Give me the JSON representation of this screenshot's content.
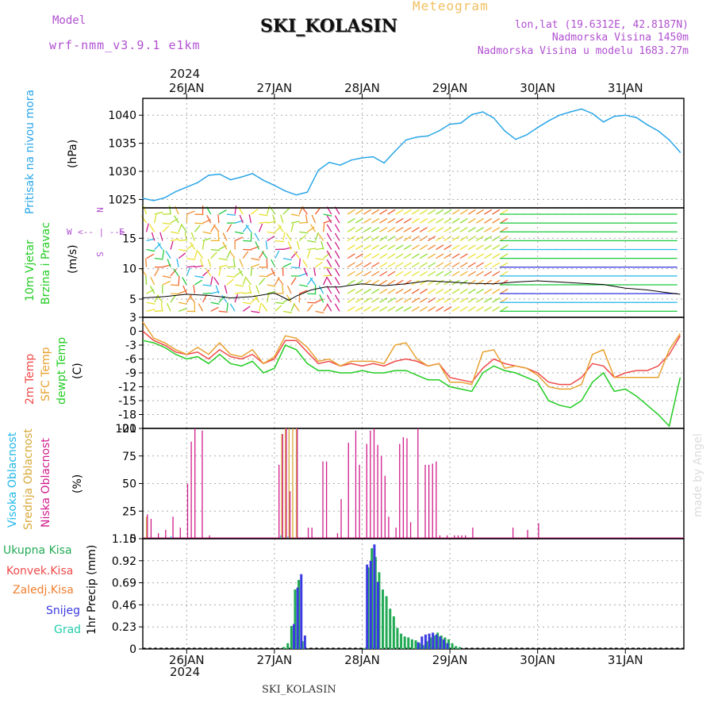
{
  "header": {
    "title": "SKI_KOLASIN",
    "subtitle": "Meteogram",
    "model_label": "Model",
    "model_name": "wrf-nmm_v3.9.1  e1km",
    "lonlat": "lon,lat (19.6312E, 42.8187N)",
    "elevation": "Nadmorska Visina 1450m",
    "model_elevation": "Nadmorska Visina u modelu 1683.27m",
    "footer_station": "SKI_KOLASIN",
    "watermark": "made by Angel",
    "year": "2024"
  },
  "colors": {
    "pressure": "#2aa6e8",
    "temp2m": "#f04a4a",
    "sfc": "#e8a030",
    "dewpt": "#22cc22",
    "high": "#22b8e8",
    "mid": "#d8a838",
    "low": "#d01c8b",
    "total_precip": "#22aa55",
    "conv": "#f04a4a",
    "frz": "#f08030",
    "snow": "#3a3ae0",
    "grad": "#22ccaa",
    "purple_text": "#b050d0",
    "title_orange": "#f0c060"
  },
  "panels": {
    "pressure": {
      "label1": "Pritisak na nivou mora",
      "unit": "(hPa)"
    },
    "wind": {
      "label1": "10m Vjetar",
      "label2": "Brzina i Pravac",
      "unit": "(m/s)",
      "compass_n": "N",
      "compass_e": "E",
      "compass_s": "S",
      "compass_w": "W"
    },
    "temp": {
      "label1": "2m Temp",
      "label2": "SFC Temp",
      "label3": "dewpt Temp",
      "unit": "(C)"
    },
    "cloud": {
      "label1": "Visoka Oblacnost",
      "label2": "Srednja Oblacnost",
      "label3": "Niska Oblacnost",
      "unit": "(%)"
    },
    "precip": {
      "unit": "1hr Precip (mm)",
      "legend": [
        "Ukupna Kisa",
        "Konvek.Kisa",
        "Zaledj.Kisa",
        "Snijeg",
        "Grad"
      ]
    }
  },
  "chart_data": [
    {
      "type": "line",
      "title": "Pritisak na nivou mora",
      "ylabel": "(hPa)",
      "ylim": [
        1023.5,
        1043
      ],
      "yticks": [
        1025,
        1030,
        1035,
        1040
      ],
      "xlim": [
        0,
        148
      ],
      "x_categories": [
        "26JAN",
        "27JAN",
        "28JAN",
        "29JAN",
        "30JAN",
        "31JAN"
      ],
      "x_category_pos": [
        12,
        36,
        60,
        84,
        108,
        132
      ],
      "x": [
        0,
        3,
        6,
        9,
        12,
        15,
        18,
        21,
        24,
        27,
        30,
        33,
        36,
        39,
        42,
        45,
        48,
        51,
        54,
        57,
        60,
        63,
        66,
        69,
        72,
        75,
        78,
        81,
        84,
        87,
        90,
        93,
        96,
        99,
        102,
        105,
        108,
        111,
        114,
        117,
        120,
        123,
        126,
        129,
        132,
        135,
        138,
        141,
        144,
        147
      ],
      "values": [
        1025.2,
        1024.8,
        1025.3,
        1026.4,
        1027.2,
        1028.0,
        1029.3,
        1029.5,
        1028.5,
        1029.0,
        1029.6,
        1028.4,
        1027.5,
        1026.5,
        1025.8,
        1026.3,
        1030.2,
        1031.6,
        1031.1,
        1032.0,
        1032.4,
        1032.6,
        1031.5,
        1033.6,
        1035.6,
        1036.1,
        1036.3,
        1037.2,
        1038.4,
        1038.6,
        1040.1,
        1040.6,
        1039.5,
        1037.2,
        1035.7,
        1036.5,
        1037.8,
        1039.0,
        1040.0,
        1040.6,
        1041.1,
        1040.3,
        1038.8,
        1039.8,
        1040.0,
        1039.6,
        1038.3,
        1037.2,
        1035.6,
        1033.4
      ],
      "grid": true
    },
    {
      "type": "line",
      "title": "10m Vjetar Brzina i Pravac",
      "ylabel": "(m/s)",
      "ylim": [
        2,
        20
      ],
      "yticks": [
        5,
        10,
        15
      ],
      "xlim": [
        0,
        148
      ],
      "x": [
        0,
        6,
        12,
        18,
        24,
        30,
        36,
        40,
        42,
        46,
        50,
        54,
        56,
        60,
        66,
        72,
        78,
        84,
        90,
        96,
        102,
        108,
        114,
        120,
        126,
        132,
        138,
        144,
        147
      ],
      "values": [
        5.2,
        5.4,
        5.8,
        5.6,
        5.2,
        5.4,
        6.0,
        4.8,
        5.5,
        6.5,
        7.0,
        7.0,
        7.2,
        7.5,
        7.2,
        7.5,
        8.0,
        7.8,
        7.6,
        7.5,
        7.8,
        8.0,
        7.8,
        7.6,
        7.4,
        6.8,
        6.5,
        6.0,
        5.8
      ],
      "grid": true
    },
    {
      "type": "line",
      "title": "Temp",
      "ylabel": "(C)",
      "ylim": [
        -21,
        3
      ],
      "yticks": [
        3,
        0,
        -3,
        -6,
        -9,
        -12,
        -15,
        -18,
        -21
      ],
      "xlim": [
        0,
        148
      ],
      "series": [
        {
          "name": "2m Temp",
          "x": [
            0,
            3,
            6,
            9,
            12,
            15,
            18,
            21,
            24,
            27,
            30,
            33,
            36,
            39,
            42,
            45,
            48,
            51,
            54,
            57,
            60,
            63,
            66,
            69,
            72,
            75,
            78,
            81,
            84,
            87,
            90,
            93,
            96,
            99,
            102,
            105,
            108,
            111,
            114,
            117,
            120,
            123,
            126,
            129,
            132,
            135,
            138,
            141,
            144,
            147
          ],
          "values": [
            0,
            -2,
            -3,
            -4.5,
            -5,
            -4.5,
            -6,
            -4,
            -5.5,
            -6,
            -5,
            -7,
            -6,
            -2,
            -2,
            -4.5,
            -7,
            -6.5,
            -7.5,
            -7,
            -7.5,
            -7,
            -7.5,
            -6.5,
            -6,
            -6.5,
            -7.5,
            -7,
            -10,
            -10.5,
            -11,
            -8,
            -6,
            -7,
            -7.5,
            -8,
            -9,
            -11,
            -11.5,
            -11.5,
            -10,
            -7,
            -7.5,
            -10,
            -9,
            -8.5,
            -8.5,
            -7.5,
            -5,
            -1
          ]
        },
        {
          "name": "SFC Temp",
          "x": [
            0,
            3,
            6,
            9,
            12,
            15,
            18,
            21,
            24,
            27,
            30,
            33,
            36,
            39,
            42,
            45,
            48,
            51,
            54,
            57,
            60,
            63,
            66,
            69,
            72,
            75,
            78,
            81,
            84,
            87,
            90,
            93,
            96,
            99,
            102,
            105,
            108,
            111,
            114,
            117,
            120,
            123,
            126,
            129,
            132,
            135,
            138,
            141,
            144,
            147
          ],
          "values": [
            2,
            -1.5,
            -2.5,
            -4,
            -5,
            -3.5,
            -5,
            -2.5,
            -5,
            -5.5,
            -4,
            -7,
            -5.5,
            -1,
            -1.5,
            -3.5,
            -6.5,
            -6,
            -7.5,
            -6.5,
            -6.5,
            -6.5,
            -7,
            -3,
            -2.5,
            -6,
            -7.5,
            -7,
            -11,
            -11,
            -11.5,
            -4.5,
            -4,
            -8,
            -7.5,
            -8,
            -9.5,
            -12,
            -12.5,
            -12.5,
            -11.5,
            -5,
            -4,
            -10,
            -10,
            -10,
            -10,
            -10,
            -4,
            -0.5
          ]
        },
        {
          "name": "dewpt Temp",
          "x": [
            0,
            3,
            6,
            9,
            12,
            15,
            18,
            21,
            24,
            27,
            30,
            33,
            36,
            39,
            42,
            45,
            48,
            51,
            54,
            57,
            60,
            63,
            66,
            69,
            72,
            75,
            78,
            81,
            84,
            87,
            90,
            93,
            96,
            99,
            102,
            105,
            108,
            111,
            114,
            117,
            120,
            123,
            126,
            129,
            132,
            135,
            138,
            141,
            144,
            147
          ],
          "values": [
            -2,
            -2.5,
            -3.5,
            -5,
            -6,
            -5.5,
            -7,
            -5,
            -7,
            -7.5,
            -6.5,
            -9,
            -8,
            -3,
            -4,
            -7,
            -8.5,
            -8.5,
            -9,
            -9,
            -8.5,
            -9,
            -9,
            -8.5,
            -8.5,
            -9.5,
            -10.5,
            -10.5,
            -12,
            -12.5,
            -13,
            -9,
            -7.5,
            -8.5,
            -9,
            -10,
            -11,
            -15,
            -16,
            -16.5,
            -15,
            -11,
            -9,
            -13,
            -12.5,
            -14,
            -16,
            -18,
            -20.5,
            -10
          ]
        }
      ],
      "grid": true
    },
    {
      "type": "bar",
      "title": "Oblacnost",
      "ylabel": "(%)",
      "ylim": [
        0,
        100
      ],
      "yticks": [
        0,
        25,
        50,
        75,
        100
      ],
      "xlim": [
        0,
        148
      ],
      "series": [
        {
          "name": "Visoka Oblacnost",
          "x": [
            8,
            38,
            40
          ],
          "values": [
            2,
            3,
            2
          ]
        },
        {
          "name": "Srednja Oblacnost",
          "x": [
            1,
            38,
            39,
            40,
            41,
            42
          ],
          "values": [
            20,
            95,
            100,
            100,
            100,
            100
          ]
        },
        {
          "name": "Niska Oblacnost",
          "x": [
            1,
            2,
            4,
            6,
            8,
            10,
            12,
            13,
            14,
            16,
            18,
            37,
            38,
            39,
            40,
            42,
            45,
            46,
            49,
            50,
            53,
            54,
            56,
            58,
            59,
            61,
            62,
            63,
            64,
            65,
            66,
            67,
            69,
            70,
            71,
            72,
            73,
            75,
            77,
            78,
            79,
            80,
            81,
            83,
            85,
            86,
            87,
            88,
            90,
            101,
            105,
            108
          ],
          "values": [
            22,
            18,
            5,
            8,
            20,
            10,
            50,
            88,
            100,
            98,
            3,
            67,
            95,
            100,
            43,
            100,
            10,
            10,
            70,
            70,
            5,
            36,
            87,
            98,
            67,
            86,
            98,
            100,
            85,
            75,
            57,
            20,
            10,
            86,
            92,
            91,
            15,
            100,
            67,
            67,
            68,
            70,
            3,
            3,
            3,
            3,
            3,
            3,
            10,
            10,
            8,
            14
          ]
        }
      ],
      "grid": true
    },
    {
      "type": "bar",
      "title": "1hr Precip",
      "ylabel": "1hr Precip (mm)",
      "ylim": [
        0,
        1.15
      ],
      "yticks": [
        0,
        0.23,
        0.46,
        0.69,
        0.92,
        1.15
      ],
      "xlim": [
        0,
        148
      ],
      "series": [
        {
          "name": "Ukupna Kisa",
          "x": [
            39,
            40,
            41,
            42,
            43,
            44,
            61,
            62,
            63,
            64,
            65,
            66,
            67,
            68,
            69,
            70,
            71,
            72,
            73,
            74,
            75,
            76,
            77,
            78,
            79,
            80,
            81,
            82,
            83,
            84,
            85,
            86,
            87
          ],
          "values": [
            0.02,
            0.06,
            0.24,
            0.62,
            0.72,
            0.08,
            0.01,
            0.85,
            1.05,
            0.96,
            0.8,
            0.62,
            0.55,
            0.42,
            0.34,
            0.22,
            0.16,
            0.13,
            0.12,
            0.1,
            0.09,
            0.06,
            0.04,
            0.08,
            0.12,
            0.14,
            0.17,
            0.14,
            0.12,
            0.1,
            0.06,
            0.03,
            0.02
          ]
        },
        {
          "name": "Snijeg",
          "x": [
            41,
            42,
            43,
            44,
            61,
            62,
            63,
            64,
            75,
            76,
            77,
            78,
            79,
            80,
            81,
            82,
            83
          ],
          "values": [
            0.26,
            0.64,
            0.78,
            0.14,
            0.88,
            0.92,
            1.09,
            0.7,
            0.07,
            0.13,
            0.15,
            0.16,
            0.17,
            0.15,
            0.13,
            0.1,
            0.06
          ]
        }
      ],
      "grid": true
    }
  ]
}
